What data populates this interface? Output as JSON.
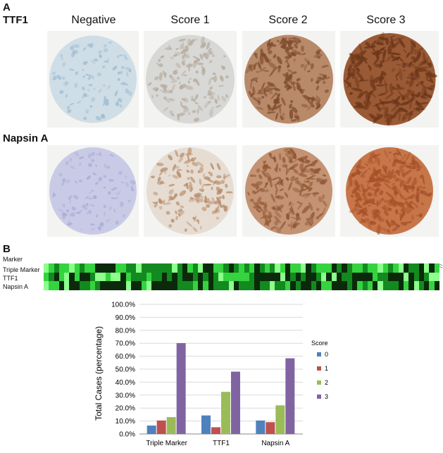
{
  "panel_a": {
    "letter": "A",
    "columns": [
      "Negative",
      "Score 1",
      "Score 2",
      "Score 3"
    ],
    "rows": [
      {
        "label": "TTF1",
        "stain": "ttf1"
      },
      {
        "label": "Napsin A",
        "stain": "napsin"
      }
    ]
  },
  "panel_b": {
    "letter": "B",
    "heatmap": {
      "header_label": "Marker",
      "row_labels": [
        "Triple Marker",
        "TTF1",
        "Napsin A"
      ],
      "case_count": 77,
      "colors": {
        "0": "#0b2a0b",
        "1": "#138a1f",
        "2": "#35d33f",
        "3": "#8cff8c"
      }
    }
  },
  "chart_data": {
    "type": "bar",
    "categories": [
      "Triple Marker",
      "TTF1",
      "Napsin A"
    ],
    "series": [
      {
        "name": "0",
        "color": "#4f81bd",
        "values": [
          6.5,
          14.3,
          10.4
        ]
      },
      {
        "name": "1",
        "color": "#c0504d",
        "values": [
          10.4,
          5.2,
          9.1
        ]
      },
      {
        "name": "2",
        "color": "#9bbb59",
        "values": [
          13.0,
          32.5,
          22.1
        ]
      },
      {
        "name": "3",
        "color": "#8064a2",
        "values": [
          70.1,
          48.1,
          58.4
        ]
      }
    ],
    "ylabel": "Total Cases (percentage)",
    "ylim": [
      0,
      100
    ],
    "yticks": [
      "0.0%",
      "10.0%",
      "20.0%",
      "30.0%",
      "40.0%",
      "50.0%",
      "60.0%",
      "70.0%",
      "80.0%",
      "90.0%",
      "100.0%"
    ],
    "legend_title": "Score",
    "legend_position": "right",
    "grid": true
  }
}
